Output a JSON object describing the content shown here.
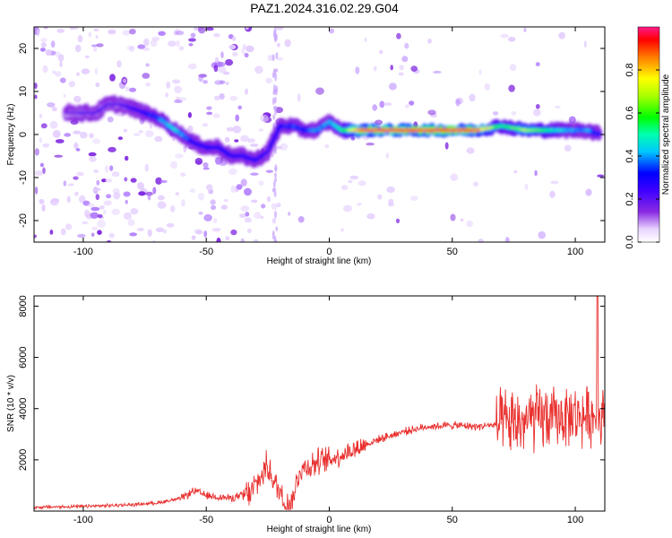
{
  "title": "PAZ1.2024.316.02.29.G04",
  "colors": {
    "snr_line": "#e8312f",
    "ridge_low": "#7b00ff",
    "ridge_mid": "#00e6ff",
    "ridge_high": "#ff1a1a",
    "noise": "#b57cff"
  },
  "chart_data": [
    {
      "type": "heatmap",
      "xlabel": "Height of straight line (km)",
      "ylabel": "Frequency (Hz)",
      "xlim": [
        -120,
        112
      ],
      "ylim": [
        -25,
        25
      ],
      "x_ticks": [
        -100,
        -50,
        0,
        50,
        100
      ],
      "y_ticks": [
        20,
        10,
        0,
        -10,
        -20
      ],
      "colorbar": {
        "label": "Normalized spectral amplitude",
        "range": [
          0,
          1
        ],
        "ticks": [
          "0.0",
          "0.2",
          "0.4",
          "0.6",
          "0.8"
        ]
      },
      "ridge": {
        "x": [
          -107,
          -100,
          -95,
          -90,
          -85,
          -80,
          -75,
          -70,
          -65,
          -60,
          -55,
          -50,
          -45,
          -40,
          -35,
          -30,
          -25,
          -20,
          -15,
          -10,
          -5,
          0,
          5,
          10,
          15,
          20,
          30,
          40,
          50,
          60,
          70,
          80,
          90,
          100,
          105,
          110
        ],
        "frequency": [
          5,
          5,
          5,
          7,
          7,
          6,
          5,
          4,
          2,
          0,
          -2,
          -3,
          -3,
          -5,
          -5,
          -6,
          -4,
          2,
          2,
          1,
          1,
          3,
          1,
          1,
          1,
          1,
          1,
          1,
          1,
          1,
          2,
          1,
          1,
          1,
          1,
          0
        ],
        "amplitude": [
          0.15,
          0.2,
          0.2,
          0.2,
          0.2,
          0.25,
          0.3,
          0.35,
          0.45,
          0.4,
          0.3,
          0.3,
          0.3,
          0.3,
          0.3,
          0.3,
          0.25,
          0.3,
          0.35,
          0.35,
          0.4,
          0.4,
          0.5,
          0.8,
          0.9,
          0.95,
          0.95,
          0.95,
          0.95,
          0.9,
          0.5,
          0.7,
          0.5,
          0.4,
          0.4,
          0.3
        ]
      },
      "grid": false
    },
    {
      "type": "line",
      "xlabel": "Height of straight line (km)",
      "ylabel": "SNR (10 * v/v)",
      "xlim": [
        -120,
        112
      ],
      "ylim": [
        0,
        8400
      ],
      "x_ticks": [
        -100,
        -50,
        0,
        50,
        100
      ],
      "y_ticks": [
        2000,
        4000,
        6000,
        8000
      ],
      "trend": {
        "x": [
          -120,
          -100,
          -80,
          -70,
          -60,
          -55,
          -50,
          -40,
          -32,
          -28,
          -25,
          -22,
          -20,
          -18,
          -15,
          -12,
          -10,
          -5,
          0,
          10,
          20,
          30,
          40,
          50,
          60,
          65,
          70,
          75,
          80,
          85,
          90,
          95,
          100,
          105,
          110,
          112
        ],
        "y": [
          150,
          180,
          250,
          320,
          500,
          800,
          600,
          500,
          700,
          1300,
          1800,
          1000,
          800,
          300,
          400,
          1600,
          1700,
          1900,
          2000,
          2400,
          2800,
          3100,
          3300,
          3350,
          3300,
          3350,
          3350,
          3400,
          3500,
          3600,
          3650,
          3700,
          3700,
          3700,
          3700,
          3700
        ]
      },
      "grid": false
    }
  ]
}
